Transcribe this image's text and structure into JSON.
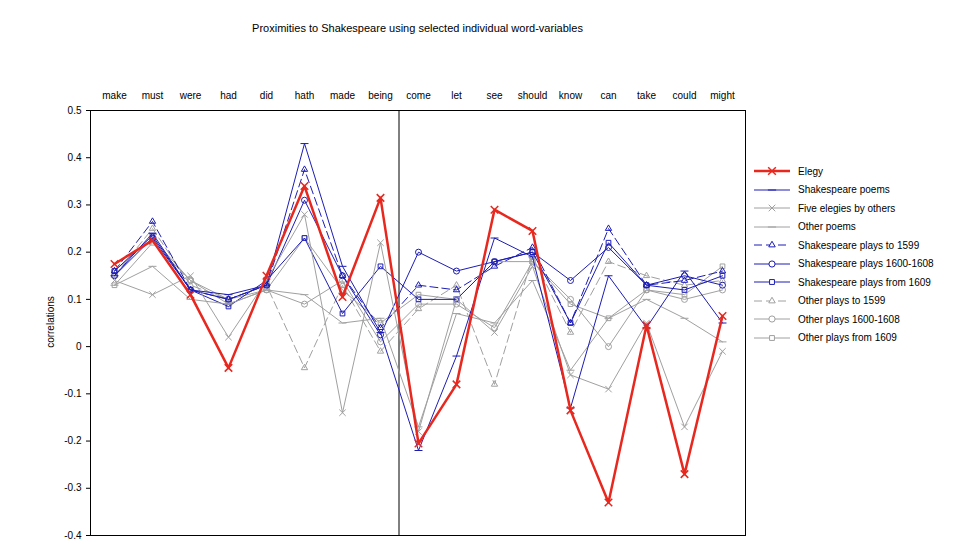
{
  "chart_data": {
    "type": "line",
    "title": "Proximities to Shakespeare using selected individual word-variables",
    "ylabel": "correlations",
    "categories": [
      "make",
      "must",
      "were",
      "had",
      "did",
      "hath",
      "made",
      "being",
      "come",
      "let",
      "see",
      "should",
      "know",
      "can",
      "take",
      "could",
      "might"
    ],
    "ylim": [
      -0.4,
      0.5
    ],
    "yticks": [
      -0.4,
      -0.3,
      -0.2,
      -0.1,
      0,
      0.1,
      0.2,
      0.3,
      0.4,
      0.5
    ],
    "grid": false,
    "legend": "right",
    "series": [
      {
        "name": "Elegy",
        "color": "#e8281e",
        "marker": "x",
        "line_style": "solid",
        "values": [
          0.175,
          0.225,
          0.11,
          -0.045,
          0.15,
          0.34,
          0.105,
          0.315,
          -0.205,
          -0.08,
          0.29,
          0.245,
          -0.135,
          -0.33,
          0.045,
          -0.27,
          0.065
        ]
      },
      {
        "name": "Shakespeare poems",
        "color": "#1c1cb4",
        "marker": "dash",
        "line_style": "solid",
        "values": [
          0.15,
          0.24,
          0.12,
          0.11,
          0.13,
          0.43,
          0.17,
          0.03,
          -0.22,
          -0.02,
          0.23,
          0.19,
          -0.13,
          0.15,
          0.04,
          0.16,
          0.05
        ]
      },
      {
        "name": "Five elegies by others",
        "color": "#a0a0a0",
        "marker": "x",
        "line_style": "solid",
        "values": [
          0.14,
          0.11,
          0.15,
          0.02,
          0.14,
          0.28,
          -0.14,
          0.22,
          -0.18,
          0.1,
          0.03,
          0.17,
          -0.06,
          -0.09,
          0.05,
          -0.17,
          -0.01
        ]
      },
      {
        "name": "Other poems",
        "color": "#a0a0a0",
        "marker": "dash",
        "line_style": "solid",
        "values": [
          0.13,
          0.17,
          0.1,
          0.09,
          0.12,
          0.11,
          0.05,
          0.06,
          -0.17,
          0.07,
          0.05,
          0.14,
          -0.05,
          0.06,
          0.1,
          0.06,
          0.01
        ]
      },
      {
        "name": "Shakespeare plays to 1599",
        "color": "#1c1cb4",
        "marker": "triangle",
        "line_style": "dashed",
        "values": [
          0.16,
          0.265,
          0.12,
          0.1,
          0.13,
          0.375,
          0.15,
          0.04,
          0.13,
          0.12,
          0.17,
          0.21,
          0.05,
          0.25,
          0.13,
          0.14,
          0.16
        ]
      },
      {
        "name": "Shakespeare plays 1600-1608",
        "color": "#1c1cb4",
        "marker": "circle",
        "line_style": "solid",
        "values": [
          0.15,
          0.23,
          0.12,
          0.1,
          0.13,
          0.31,
          0.15,
          0.025,
          0.2,
          0.16,
          0.18,
          0.2,
          0.14,
          0.21,
          0.13,
          0.15,
          0.13
        ]
      },
      {
        "name": "Shakespeare plays from 1609",
        "color": "#1c1cb4",
        "marker": "square",
        "line_style": "solid",
        "values": [
          0.16,
          0.235,
          0.12,
          0.085,
          0.14,
          0.23,
          0.07,
          0.17,
          0.1,
          0.1,
          0.18,
          0.2,
          0.05,
          0.22,
          0.13,
          0.12,
          0.15
        ]
      },
      {
        "name": "Other plays to 1599",
        "color": "#a0a0a0",
        "marker": "triangle",
        "line_style": "dashed",
        "values": [
          0.15,
          0.25,
          0.13,
          0.1,
          0.13,
          -0.045,
          0.13,
          -0.01,
          0.08,
          0.13,
          -0.08,
          0.19,
          0.03,
          0.18,
          0.15,
          0.13,
          0.14
        ]
      },
      {
        "name": "Other plays 1600-1608",
        "color": "#a0a0a0",
        "marker": "circle",
        "line_style": "solid",
        "values": [
          0.16,
          0.23,
          0.14,
          0.09,
          0.12,
          0.09,
          0.14,
          0.01,
          0.09,
          0.09,
          0.04,
          0.18,
          0.1,
          0.0,
          0.12,
          0.1,
          0.12
        ]
      },
      {
        "name": "Other plays from 1609",
        "color": "#a0a0a0",
        "marker": "square",
        "line_style": "solid",
        "values": [
          0.13,
          0.22,
          0.14,
          0.1,
          0.12,
          0.23,
          0.12,
          0.05,
          0.11,
          0.1,
          0.18,
          0.18,
          0.09,
          0.06,
          0.12,
          0.11,
          0.17
        ]
      }
    ]
  }
}
